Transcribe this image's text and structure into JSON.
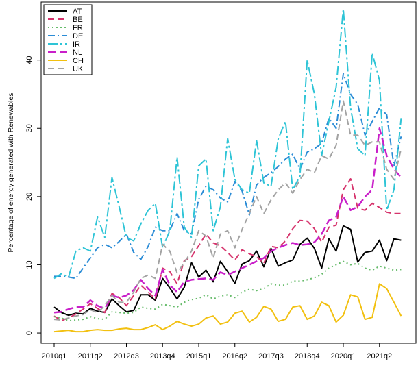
{
  "chart_data": {
    "type": "line",
    "title": "",
    "xlabel": "",
    "ylabel": "Percentage of energy generated with Renewables",
    "ylim": [
      -1.5,
      48.5
    ],
    "yticks": [
      0,
      10,
      20,
      30,
      40
    ],
    "x_tick_labels": [
      "2010q1",
      "2011q2",
      "2012q3",
      "2013q4",
      "2015q1",
      "2016q2",
      "2017q3",
      "2018q4",
      "2020q1",
      "2021q2"
    ],
    "x_tick_every": 5,
    "legend_position": "top-left",
    "grid": false,
    "categories": [
      "2010q1",
      "2010q2",
      "2010q3",
      "2010q4",
      "2011q1",
      "2011q2",
      "2011q3",
      "2011q4",
      "2012q1",
      "2012q2",
      "2012q3",
      "2012q4",
      "2013q1",
      "2013q2",
      "2013q3",
      "2013q4",
      "2014q1",
      "2014q2",
      "2014q3",
      "2014q4",
      "2015q1",
      "2015q2",
      "2015q3",
      "2015q4",
      "2016q1",
      "2016q2",
      "2016q3",
      "2016q4",
      "2017q1",
      "2017q2",
      "2017q3",
      "2017q4",
      "2018q1",
      "2018q2",
      "2018q3",
      "2018q4",
      "2019q1",
      "2019q2",
      "2019q3",
      "2019q4",
      "2020q1",
      "2020q2",
      "2020q3",
      "2020q4",
      "2021q1",
      "2021q2",
      "2021q3",
      "2021q4",
      "2022q1"
    ],
    "series": [
      {
        "name": "AT",
        "color": "#000000",
        "dash": "",
        "width": 2,
        "values": [
          3.8,
          3.0,
          2.6,
          2.9,
          2.8,
          3.6,
          3.2,
          3.0,
          5.0,
          4.0,
          3.1,
          3.3,
          5.6,
          5.6,
          4.8,
          8.0,
          6.6,
          5.0,
          6.7,
          10.3,
          8.2,
          9.2,
          7.5,
          10.5,
          9.0,
          7.3,
          10.1,
          10.6,
          12.0,
          9.7,
          12.4,
          9.8,
          10.3,
          10.7,
          13.0,
          13.9,
          12.4,
          9.5,
          13.8,
          12.0,
          15.7,
          15.2,
          10.4,
          11.8,
          12.0,
          13.6,
          10.6,
          13.8,
          13.6
        ]
      },
      {
        "name": "BE",
        "color": "#d6336c",
        "dash": "9,5",
        "width": 2,
        "values": [
          2.5,
          1.8,
          2.2,
          2.8,
          3.5,
          4.3,
          3.6,
          3.0,
          5.8,
          5.2,
          4.0,
          5.5,
          7.0,
          6.0,
          5.0,
          9.5,
          9.0,
          7.2,
          10.6,
          11.2,
          12.8,
          14.5,
          13.2,
          12.8,
          11.8,
          10.7,
          12.2,
          11.6,
          11.2,
          10.2,
          12.7,
          12.5,
          13.5,
          15.3,
          16.5,
          16.4,
          15.3,
          13.3,
          15.5,
          15.8,
          21.0,
          22.6,
          18.3,
          18.0,
          19.0,
          18.4,
          17.7,
          17.5,
          17.5
        ]
      },
      {
        "name": "FR",
        "color": "#66bb6a",
        "dash": "2,4",
        "width": 2,
        "values": [
          2.4,
          2.2,
          1.8,
          1.9,
          2.0,
          2.4,
          2.1,
          2.0,
          3.1,
          3.0,
          2.9,
          3.0,
          3.8,
          3.6,
          3.5,
          4.2,
          4.0,
          3.8,
          4.5,
          4.9,
          5.1,
          5.6,
          5.0,
          5.4,
          5.6,
          5.2,
          6.0,
          6.4,
          6.2,
          6.5,
          7.2,
          7.0,
          7.0,
          7.6,
          7.6,
          7.8,
          8.1,
          8.6,
          9.5,
          10.0,
          10.5,
          10.0,
          10.2,
          9.5,
          9.2,
          9.8,
          9.5,
          9.2,
          9.3
        ]
      },
      {
        "name": "DE",
        "color": "#2b8cd6",
        "dash": "10,4,2,4",
        "width": 2,
        "values": [
          8.3,
          8.3,
          8.2,
          8.0,
          9.5,
          11.0,
          12.5,
          13.0,
          12.5,
          13.4,
          14.5,
          11.8,
          10.8,
          12.7,
          15.5,
          15.0,
          15.0,
          17.5,
          15.0,
          14.5,
          19.6,
          21.5,
          21.0,
          19.8,
          19.2,
          22.2,
          20.8,
          17.3,
          21.7,
          22.8,
          23.5,
          24.4,
          25.5,
          26.2,
          24.0,
          26.5,
          27.0,
          27.8,
          31.5,
          30.0,
          38.0,
          35.0,
          33.5,
          29.0,
          31.0,
          33.0,
          32.0,
          24.5,
          28.8
        ]
      },
      {
        "name": "IR",
        "color": "#2ec4d6",
        "dash": "14,4,3,4",
        "width": 2,
        "values": [
          8.0,
          8.7,
          8.2,
          12.0,
          12.5,
          12.0,
          17.0,
          14.0,
          22.8,
          18.5,
          14.0,
          13.5,
          16.0,
          18.0,
          19.0,
          12.5,
          15.0,
          25.8,
          15.5,
          14.0,
          24.5,
          25.5,
          15.0,
          18.5,
          28.5,
          22.5,
          21.0,
          20.5,
          28.2,
          22.0,
          21.5,
          28.5,
          31.0,
          21.0,
          23.0,
          40.0,
          35.0,
          26.0,
          31.0,
          36.0,
          47.5,
          33.0,
          27.0,
          26.0,
          41.0,
          37.0,
          18.0,
          21.0,
          31.5
        ]
      },
      {
        "name": "NL",
        "color": "#c91fc9",
        "dash": "12,5",
        "width": 2.5,
        "values": [
          3.0,
          3.1,
          3.5,
          3.8,
          3.8,
          4.8,
          4.0,
          3.6,
          5.5,
          5.2,
          5.5,
          6.3,
          7.8,
          6.5,
          5.5,
          9.3,
          7.0,
          6.0,
          7.5,
          7.8,
          7.9,
          8.0,
          7.8,
          8.9,
          8.5,
          9.0,
          9.5,
          10.0,
          10.5,
          11.0,
          12.0,
          12.5,
          12.9,
          13.2,
          12.9,
          13.0,
          13.3,
          14.5,
          16.5,
          17.0,
          20.0,
          18.0,
          18.5,
          20.0,
          21.0,
          30.0,
          26.0,
          24.0,
          22.8
        ]
      },
      {
        "name": "CH",
        "color": "#f2c010",
        "dash": "",
        "width": 2,
        "values": [
          0.2,
          0.3,
          0.4,
          0.2,
          0.2,
          0.4,
          0.5,
          0.4,
          0.4,
          0.6,
          0.7,
          0.5,
          0.5,
          0.8,
          1.2,
          0.5,
          1.0,
          1.7,
          1.3,
          1.0,
          1.3,
          2.2,
          2.5,
          1.3,
          1.6,
          2.9,
          3.2,
          1.6,
          2.3,
          3.9,
          3.5,
          1.7,
          2.0,
          3.8,
          4.0,
          2.0,
          2.5,
          4.5,
          4.0,
          1.6,
          2.6,
          5.6,
          5.3,
          2.0,
          2.3,
          7.2,
          6.5,
          4.5,
          2.5
        ]
      },
      {
        "name": "UK",
        "color": "#a3a3a3",
        "dash": "9,5",
        "width": 2,
        "values": [
          2.0,
          1.9,
          2.2,
          2.5,
          2.7,
          3.4,
          3.0,
          4.0,
          5.5,
          4.5,
          4.5,
          6.0,
          8.0,
          8.5,
          8.0,
          13.0,
          12.0,
          8.8,
          10.3,
          12.0,
          15.0,
          14.2,
          11.0,
          14.5,
          15.0,
          12.5,
          15.2,
          17.5,
          20.0,
          17.5,
          19.5,
          21.0,
          22.0,
          20.5,
          22.5,
          24.0,
          23.5,
          26.0,
          25.5,
          27.5,
          34.0,
          29.0,
          29.0,
          27.5,
          28.0,
          28.0,
          24.0,
          22.5,
          27.0
        ]
      }
    ]
  }
}
